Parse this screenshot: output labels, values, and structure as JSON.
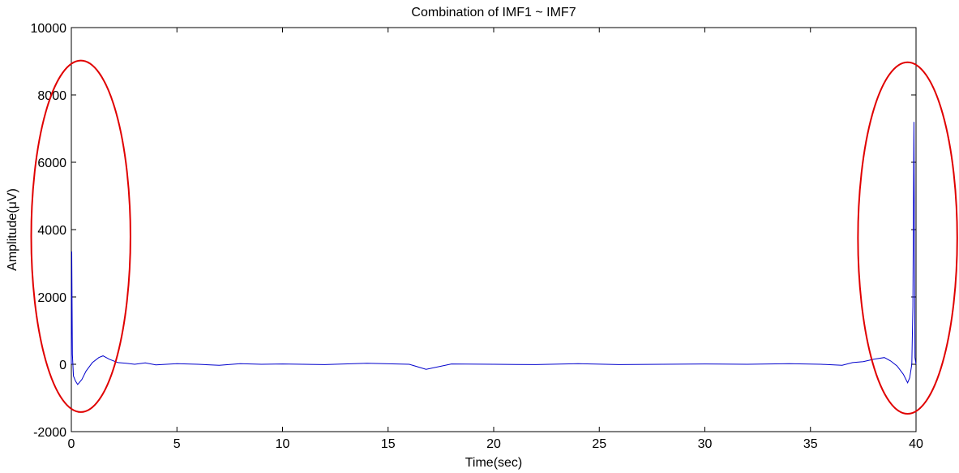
{
  "chart_data": {
    "type": "line",
    "title": "Combination of IMF1 ~ IMF7",
    "xlabel": "Time(sec)",
    "ylabel": "Amplitude(μV)",
    "xlim": [
      0,
      40
    ],
    "ylim": [
      -2000,
      10000
    ],
    "x_ticks": [
      0,
      5,
      10,
      15,
      20,
      25,
      30,
      35,
      40
    ],
    "y_ticks": [
      -2000,
      0,
      2000,
      4000,
      6000,
      8000,
      10000
    ],
    "x_tick_labels": [
      "0",
      "5",
      "10",
      "15",
      "20",
      "25",
      "30",
      "35",
      "40"
    ],
    "y_tick_labels": [
      "-2000",
      "0",
      "2000",
      "4000",
      "6000",
      "8000",
      "10000"
    ],
    "grid": false,
    "series": [
      {
        "color": "#0000cc",
        "x": [
          0,
          0.02,
          0.05,
          0.1,
          0.2,
          0.3,
          0.5,
          0.7,
          1.0,
          1.3,
          1.5,
          1.8,
          2.2,
          2.6,
          3.0,
          3.5,
          4.0,
          5.0,
          6.0,
          7.0,
          8.0,
          9.0,
          10.0,
          12.0,
          14.0,
          16.0,
          16.8,
          18.0,
          20.0,
          22.0,
          24.0,
          26.0,
          28.0,
          30.0,
          32.0,
          34.0,
          35.5,
          36.5,
          37.0,
          37.5,
          38.0,
          38.5,
          38.8,
          39.1,
          39.4,
          39.6,
          39.7,
          39.8,
          39.85,
          39.9,
          39.95,
          40.0
        ],
        "y": [
          0,
          3350,
          300,
          -350,
          -500,
          -600,
          -450,
          -200,
          50,
          200,
          250,
          150,
          50,
          30,
          0,
          40,
          -20,
          20,
          0,
          -30,
          20,
          0,
          10,
          -10,
          30,
          0,
          -150,
          10,
          0,
          -10,
          20,
          -10,
          0,
          10,
          0,
          20,
          0,
          -30,
          50,
          80,
          150,
          200,
          100,
          -50,
          -300,
          -550,
          -400,
          0,
          1700,
          7200,
          200,
          0
        ]
      }
    ],
    "annotations": [
      {
        "type": "ellipse",
        "color": "#e00000",
        "center_x": 0.45,
        "center_y": 3800,
        "rx_sec": 2.35,
        "ry_uv": 5220
      },
      {
        "type": "ellipse",
        "color": "#e00000",
        "center_x": 39.6,
        "center_y": 3750,
        "rx_sec": 2.35,
        "ry_uv": 5220
      }
    ]
  }
}
